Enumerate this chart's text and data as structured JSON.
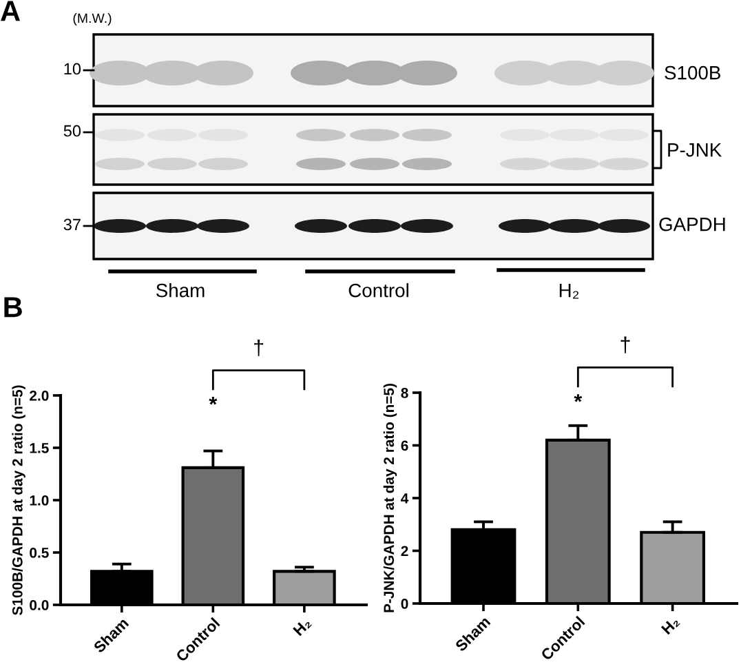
{
  "chart_data": [
    {
      "type": "other",
      "title": "A",
      "annotations": [
        "(M.W.)",
        "10",
        "50",
        "37",
        "S100B",
        "P-JNK",
        "GAPDH",
        "Sham",
        "Control",
        "H₂"
      ]
    },
    {
      "type": "bar",
      "title": "B",
      "ylabel": "S100B/GAPDH at day 2 ratio (n=5)",
      "categories": [
        "Sham",
        "Control",
        "H₂"
      ],
      "values": [
        0.32,
        1.31,
        0.32
      ],
      "errors": [
        [
          0.32,
          0.39
        ],
        [
          1.31,
          1.47
        ],
        [
          0.32,
          0.36
        ]
      ],
      "colors": [
        "#000000",
        "#6e6e6e",
        "#9e9e9e"
      ],
      "ylim": [
        0,
        2
      ],
      "yticks": [
        {
          "value": 0,
          "label": "0.0"
        },
        0.5,
        {
          "value": 1,
          "label": "1.0"
        },
        1.5,
        {
          "value": 2,
          "label": "2.0"
        }
      ],
      "annotations": [
        "*",
        "†"
      ]
    },
    {
      "type": "bar",
      "ylabel": "P-JNK/GAPDH at day 2 ratio (n=5)",
      "categories": [
        "Sham",
        "Control",
        "H₂"
      ],
      "values": [
        2.8,
        6.2,
        2.7
      ],
      "errors": [
        [
          2.8,
          3.1
        ],
        [
          6.2,
          6.75
        ],
        [
          2.7,
          3.1
        ]
      ],
      "colors": [
        "#000000",
        "#6e6e6e",
        "#9e9e9e"
      ],
      "ylim": [
        0,
        8
      ],
      "yticks": [
        0,
        2,
        4,
        6,
        8
      ],
      "annotations": [
        "*",
        "†"
      ]
    }
  ]
}
